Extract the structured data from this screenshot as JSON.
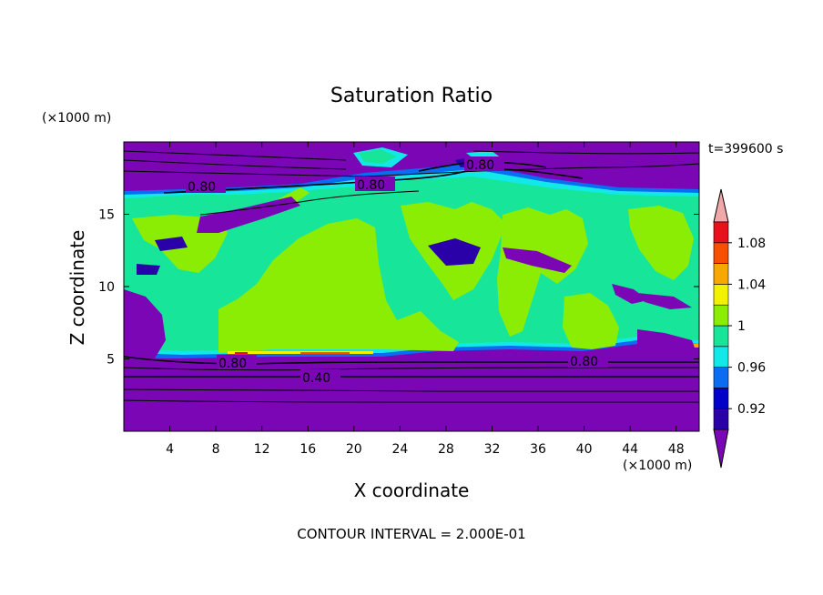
{
  "chart_data": {
    "type": "heatmap",
    "title": "Saturation Ratio",
    "xlabel": "X coordinate",
    "ylabel": "Z coordinate",
    "x_unit": "(×1000 m)",
    "y_unit": "(×1000 m)",
    "time_label": "t=399600 s",
    "footer": "CONTOUR INTERVAL = 2.000E-01",
    "xlim": [
      0,
      50
    ],
    "ylim": [
      0,
      20
    ],
    "xticks": [
      "4",
      "8",
      "12",
      "16",
      "20",
      "24",
      "28",
      "32",
      "36",
      "40",
      "44",
      "48"
    ],
    "yticks": [
      "5",
      "10",
      "15"
    ],
    "colorbar_ticks": [
      "0.92",
      "0.96",
      "1",
      "1.04",
      "1.08"
    ],
    "colorbar_colors": [
      "#7b06b5",
      "#2a00a8",
      "#0000c8",
      "#0a6cf0",
      "#13e8e8",
      "#17e69a",
      "#8ced04",
      "#f2f200",
      "#f6a800",
      "#f74f00",
      "#e8101a",
      "#f0a8a8"
    ],
    "contour_labels": [
      "0.80",
      "0.80",
      "0.80",
      "0.80",
      "0.80",
      "0.40"
    ],
    "colors": {
      "below": "#7b06b5",
      "band_0_92": "#2a00a8",
      "band_0_94": "#0000c8",
      "band_0_96": "#0a6cf0",
      "band_0_98": "#13e8e8",
      "band_1_00": "#17e69a",
      "band_1_02": "#8ced04",
      "band_1_04": "#f2f200",
      "band_1_06": "#f6a800",
      "band_1_08": "#f74f00",
      "band_1_10": "#e8101a",
      "above": "#f0a8a8"
    }
  }
}
